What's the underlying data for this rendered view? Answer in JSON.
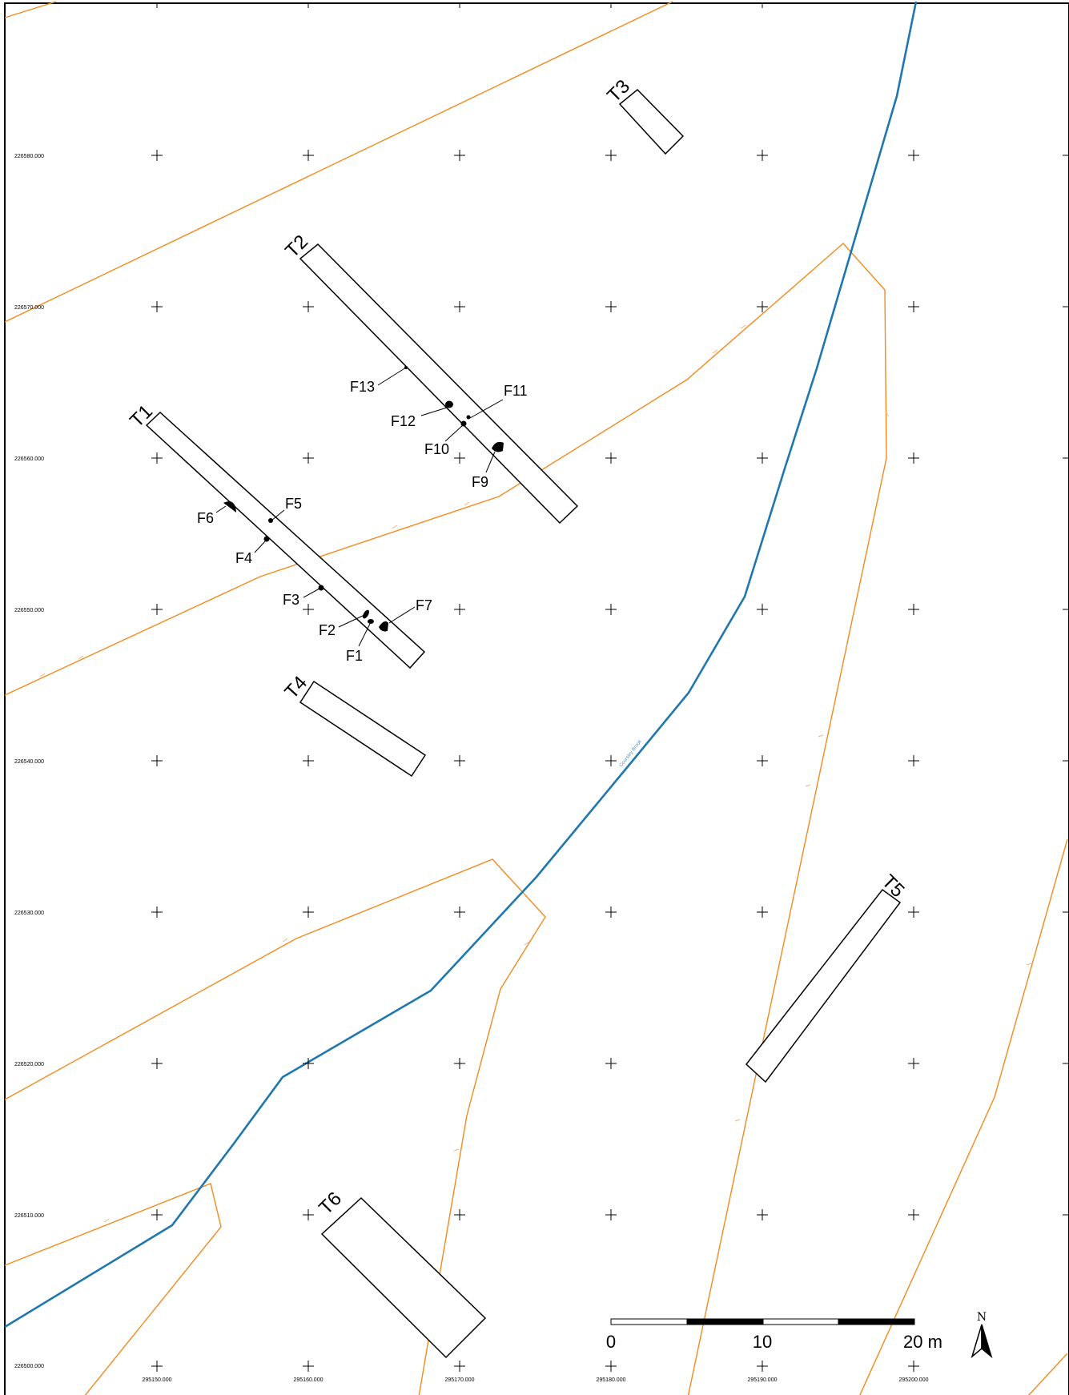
{
  "trenches": [
    {
      "id": "T1",
      "label": "T1"
    },
    {
      "id": "T2",
      "label": "T2"
    },
    {
      "id": "T3",
      "label": "T3"
    },
    {
      "id": "T4",
      "label": "T4"
    },
    {
      "id": "T5",
      "label": "T5"
    },
    {
      "id": "T6",
      "label": "T6"
    }
  ],
  "features": [
    "F1",
    "F2",
    "F3",
    "F4",
    "F5",
    "F6",
    "F7",
    "F9",
    "F10",
    "F11",
    "F12",
    "F13"
  ],
  "grid": {
    "northings": [
      "226580.000",
      "226570.000",
      "226560.000",
      "226550.000",
      "226540.000",
      "226530.000",
      "226520.000",
      "226510.000",
      "226500.000"
    ],
    "eastings": [
      "295150.000",
      "295160.000",
      "295170.000",
      "295180.000",
      "295190.000",
      "295200.000"
    ]
  },
  "stream_label": "Coursley Brook",
  "scale_bar": {
    "labels": [
      "0",
      "10",
      "20 m"
    ]
  },
  "north_arrow": {
    "label": "N"
  },
  "colors": {
    "contour": "#f28a1e",
    "stream": "#1f77b0",
    "ink": "#000000"
  }
}
